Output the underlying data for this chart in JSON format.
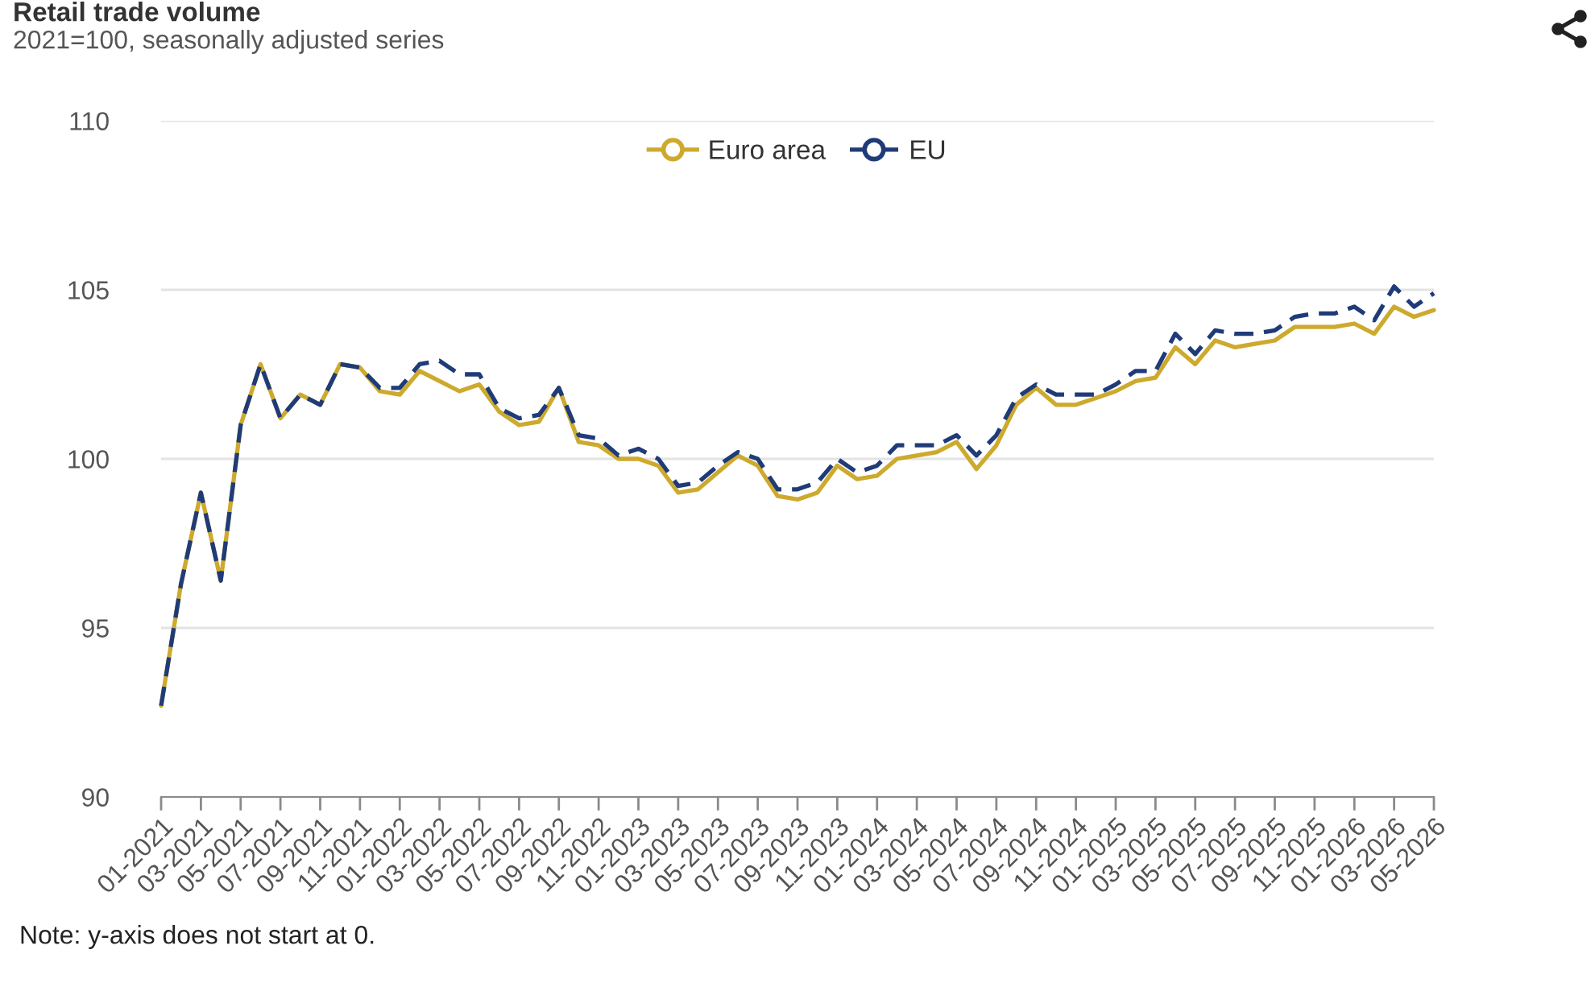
{
  "chart_data": {
    "type": "line",
    "title": "Retail trade volume",
    "subtitle": "2021=100, seasonally adjusted series",
    "categories": [
      "01-2021",
      null,
      "03-2021",
      null,
      "05-2021",
      null,
      "07-2021",
      null,
      "09-2021",
      null,
      "11-2021",
      null,
      "01-2022",
      null,
      "03-2022",
      null,
      "05-2022",
      null,
      "07-2022",
      null,
      "09-2022",
      null,
      "11-2022",
      null,
      "01-2023",
      null,
      "03-2023",
      null,
      "05-2023",
      null,
      "07-2023",
      null,
      "09-2023",
      null,
      "11-2023",
      null,
      "01-2024",
      null,
      "03-2024",
      null,
      "05-2024",
      null,
      "07-2024",
      null,
      "09-2024",
      null,
      "11-2024",
      null,
      "01-2025",
      null,
      "03-2025",
      null,
      "05-2025",
      null,
      "07-2025",
      null,
      "09-2025",
      null,
      "11-2025",
      null,
      "01-2026",
      null,
      "03-2026",
      null,
      "05-2026"
    ],
    "series": [
      {
        "name": "Euro area",
        "color": "#cdaa2e",
        "line_style": "solid",
        "values": [
          92.7,
          96.3,
          99.0,
          96.4,
          101.0,
          102.8,
          101.2,
          101.9,
          101.6,
          102.8,
          102.7,
          102.0,
          101.9,
          102.6,
          102.3,
          102.0,
          102.2,
          101.4,
          101.0,
          101.1,
          102.1,
          100.5,
          100.4,
          100.0,
          100.0,
          99.8,
          99.0,
          99.1,
          99.6,
          100.1,
          99.8,
          98.9,
          98.8,
          99.0,
          99.8,
          99.4,
          99.5,
          100.0,
          100.1,
          100.2,
          100.5,
          99.7,
          100.4,
          101.6,
          102.1,
          101.6,
          101.6,
          101.8,
          102.0,
          102.3,
          102.4,
          103.3,
          102.8,
          103.5,
          103.3,
          103.4,
          103.5,
          103.9,
          103.9,
          103.9,
          104.0,
          103.7,
          104.5,
          104.2,
          104.4
        ]
      },
      {
        "name": "EU",
        "color": "#1f3b78",
        "line_style": "dashed",
        "values": [
          92.7,
          96.3,
          99.0,
          96.4,
          101.0,
          102.8,
          101.2,
          101.9,
          101.6,
          102.8,
          102.7,
          102.1,
          102.1,
          102.8,
          102.9,
          102.5,
          102.5,
          101.5,
          101.2,
          101.3,
          102.1,
          100.7,
          100.6,
          100.1,
          100.3,
          100.0,
          99.2,
          99.3,
          99.8,
          100.2,
          100.0,
          99.1,
          99.1,
          99.3,
          100.0,
          99.6,
          99.8,
          100.4,
          100.4,
          100.4,
          100.7,
          100.1,
          100.7,
          101.8,
          102.2,
          101.9,
          101.9,
          101.9,
          102.2,
          102.6,
          102.6,
          103.7,
          103.1,
          103.8,
          103.7,
          103.7,
          103.8,
          104.2,
          104.3,
          104.3,
          104.5,
          104.1,
          105.1,
          104.5,
          104.9
        ]
      }
    ],
    "ylim": [
      90,
      110
    ],
    "yticks": [
      90,
      95,
      100,
      105,
      110
    ],
    "grid": "y",
    "legend": "top",
    "annotations": [
      "Note: y-axis does not start at 0."
    ]
  }
}
